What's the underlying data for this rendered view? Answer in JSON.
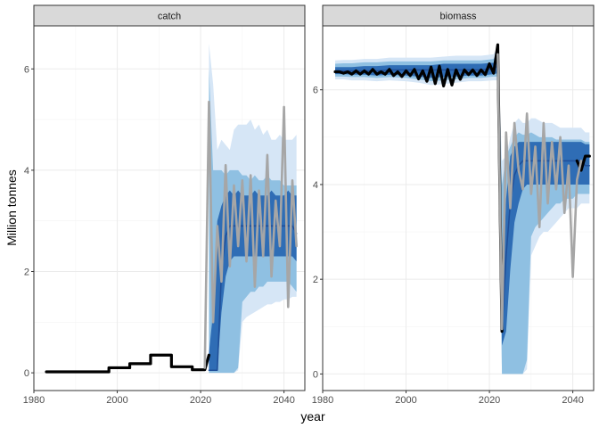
{
  "chart_data": {
    "type": "line",
    "xlabel": "year",
    "ylabel": "Million tonnes",
    "grid": true,
    "colors": {
      "band_outer": "#d6e6f6",
      "band_mid": "#8fc0e2",
      "band_inner": "#2f6db5",
      "median": "#1f4e98",
      "historical": "#000000",
      "iteration": "#a6a6a6",
      "strip_bg": "#d9d9d9",
      "panel_border": "#333333",
      "grid_major": "#ebebeb"
    },
    "panels": [
      {
        "title": "catch",
        "xlim": [
          1980,
          2045
        ],
        "ylim": [
          -0.35,
          6.85
        ],
        "xticks": [
          1980,
          2000,
          2020,
          2040
        ],
        "yticks": [
          0,
          2,
          4,
          6
        ],
        "historical": {
          "x": [
            1983,
            1984,
            1985,
            1986,
            1987,
            1988,
            1989,
            1990,
            1991,
            1992,
            1993,
            1994,
            1995,
            1996,
            1997,
            1998,
            1999,
            2000,
            2001,
            2002,
            2003,
            2004,
            2005,
            2006,
            2007,
            2008,
            2009,
            2010,
            2011,
            2012,
            2013,
            2014,
            2015,
            2016,
            2017,
            2018,
            2019,
            2020,
            2021
          ],
          "y": [
            0.02,
            0.02,
            0.02,
            0.02,
            0.02,
            0.02,
            0.02,
            0.02,
            0.02,
            0.02,
            0.02,
            0.02,
            0.02,
            0.02,
            0.02,
            0.1,
            0.1,
            0.1,
            0.1,
            0.1,
            0.18,
            0.18,
            0.18,
            0.18,
            0.18,
            0.35,
            0.35,
            0.35,
            0.35,
            0.35,
            0.12,
            0.12,
            0.12,
            0.12,
            0.12,
            0.06,
            0.06,
            0.06,
            0.06
          ]
        },
        "projection": {
          "x": [
            2022,
            2023,
            2024,
            2025,
            2026,
            2027,
            2028,
            2029,
            2030,
            2031,
            2032,
            2033,
            2034,
            2035,
            2036,
            2037,
            2038,
            2039,
            2040,
            2041,
            2042,
            2043
          ],
          "outer_lo": [
            0.0,
            0.0,
            0.0,
            0.0,
            0.0,
            0.0,
            0.0,
            0.05,
            1.0,
            1.1,
            1.15,
            1.2,
            1.25,
            1.3,
            1.35,
            1.35,
            1.4,
            1.4,
            1.45,
            1.45,
            1.5,
            1.5
          ],
          "outer_hi": [
            6.5,
            5.7,
            4.4,
            4.6,
            4.5,
            4.4,
            4.8,
            4.9,
            4.9,
            4.9,
            5.0,
            4.8,
            4.9,
            4.7,
            4.8,
            4.6,
            4.6,
            4.7,
            4.6,
            4.6,
            4.6,
            4.7
          ],
          "mid_lo": [
            0.0,
            0.0,
            0.0,
            0.0,
            0.0,
            0.0,
            0.0,
            0.1,
            1.4,
            1.5,
            1.6,
            1.6,
            1.7,
            1.7,
            1.8,
            1.8,
            1.8,
            1.8,
            1.8,
            1.8,
            1.7,
            1.6
          ],
          "mid_hi": [
            6.0,
            4.0,
            4.0,
            4.0,
            3.9,
            4.0,
            4.0,
            4.0,
            3.9,
            3.9,
            3.8,
            3.9,
            3.8,
            3.8,
            3.9,
            3.8,
            3.8,
            3.8,
            3.7,
            3.7,
            3.7,
            3.7
          ],
          "inner_lo": [
            0.05,
            0.05,
            0.05,
            1.2,
            1.9,
            2.2,
            2.3,
            2.3,
            2.3,
            2.3,
            2.3,
            2.3,
            2.3,
            2.3,
            2.3,
            2.3,
            2.3,
            2.3,
            2.3,
            2.3,
            2.3,
            2.2
          ],
          "inner_hi": [
            0.4,
            1.2,
            3.0,
            3.3,
            3.5,
            3.6,
            3.5,
            3.6,
            3.5,
            3.5,
            3.5,
            3.6,
            3.5,
            3.5,
            3.5,
            3.6,
            3.5,
            3.5,
            3.5,
            3.6,
            3.5,
            3.5
          ],
          "median": [
            0.05,
            0.05,
            0.05,
            2.0,
            2.7,
            2.9,
            2.9,
            2.9,
            2.9,
            2.9,
            2.9,
            2.9,
            2.9,
            2.9,
            2.9,
            2.9,
            2.9,
            2.9,
            2.9,
            2.9,
            2.9,
            2.75
          ]
        },
        "iteration": {
          "x": [
            2021,
            2022,
            2023,
            2024,
            2025,
            2026,
            2027,
            2028,
            2029,
            2030,
            2031,
            2032,
            2033,
            2034,
            2035,
            2036,
            2037,
            2038,
            2039,
            2040,
            2041,
            2042,
            2043
          ],
          "y": [
            0.1,
            5.35,
            1.0,
            2.9,
            1.8,
            4.1,
            2.1,
            3.7,
            2.5,
            3.8,
            2.2,
            3.9,
            1.7,
            3.6,
            2.3,
            4.3,
            1.9,
            3.4,
            2.5,
            5.25,
            1.3,
            3.8,
            2.5
          ]
        }
      },
      {
        "title": "biomass",
        "xlim": [
          1980,
          2045
        ],
        "ylim": [
          -0.35,
          7.35
        ],
        "xticks": [
          1980,
          2000,
          2020,
          2040
        ],
        "yticks": [
          0,
          2,
          4,
          6
        ],
        "historical": {
          "x": [
            1983,
            1984,
            1985,
            1986,
            1987,
            1988,
            1989,
            1990,
            1991,
            1992,
            1993,
            1994,
            1995,
            1996,
            1997,
            1998,
            1999,
            2000,
            2001,
            2002,
            2003,
            2004,
            2005,
            2006,
            2007,
            2008,
            2009,
            2010,
            2011,
            2012,
            2013,
            2014,
            2015,
            2016,
            2017,
            2018,
            2019,
            2020,
            2021,
            2022,
            2023
          ],
          "y": [
            6.38,
            6.38,
            6.35,
            6.38,
            6.33,
            6.4,
            6.33,
            6.4,
            6.33,
            6.43,
            6.33,
            6.38,
            6.33,
            6.43,
            6.3,
            6.38,
            6.28,
            6.4,
            6.3,
            6.43,
            6.23,
            6.4,
            6.18,
            6.48,
            6.13,
            6.5,
            6.08,
            6.43,
            6.1,
            6.42,
            6.22,
            6.42,
            6.32,
            6.42,
            6.3,
            6.42,
            6.32,
            6.55,
            6.35,
            6.95,
            0.9
          ]
        },
        "projection": {
          "x": [
            1983,
            1985,
            1987,
            1990,
            1993,
            1996,
            2000,
            2003,
            2006,
            2009,
            2012,
            2015,
            2018,
            2021,
            2022,
            2023,
            2024,
            2025,
            2026,
            2027,
            2028,
            2029,
            2030,
            2031,
            2032,
            2033,
            2034,
            2035,
            2036,
            2037,
            2038,
            2039,
            2040,
            2041,
            2042,
            2043,
            2044
          ],
          "outer_lo": [
            6.22,
            6.22,
            6.2,
            6.2,
            6.18,
            6.2,
            6.18,
            6.15,
            6.1,
            6.12,
            6.15,
            6.18,
            6.18,
            6.2,
            6.2,
            0.0,
            0.0,
            0.0,
            0.0,
            0.0,
            0.0,
            0.1,
            2.5,
            2.7,
            2.9,
            3.0,
            3.0,
            3.1,
            3.2,
            3.3,
            3.4,
            3.5,
            3.5,
            3.5,
            3.6,
            3.6,
            3.6
          ],
          "outer_hi": [
            6.62,
            6.63,
            6.63,
            6.65,
            6.65,
            6.68,
            6.68,
            6.68,
            6.68,
            6.7,
            6.72,
            6.72,
            6.72,
            6.75,
            6.9,
            4.5,
            4.6,
            5.0,
            5.3,
            5.4,
            5.3,
            5.3,
            5.4,
            5.4,
            5.35,
            5.3,
            5.3,
            5.3,
            5.25,
            5.2,
            5.2,
            5.2,
            5.2,
            5.2,
            5.2,
            5.1,
            5.1
          ],
          "mid_lo": [
            6.28,
            6.28,
            6.27,
            6.27,
            6.25,
            6.27,
            6.25,
            6.22,
            6.18,
            6.2,
            6.22,
            6.25,
            6.25,
            6.28,
            6.28,
            0.0,
            0.0,
            0.0,
            0.0,
            0.0,
            0.0,
            0.3,
            2.9,
            3.1,
            3.2,
            3.3,
            3.4,
            3.5,
            3.6,
            3.6,
            3.7,
            3.7,
            3.7,
            3.8,
            3.8,
            3.8,
            3.8
          ],
          "mid_hi": [
            6.55,
            6.56,
            6.56,
            6.58,
            6.58,
            6.6,
            6.6,
            6.6,
            6.6,
            6.62,
            6.62,
            6.62,
            6.62,
            6.65,
            6.8,
            4.0,
            4.6,
            4.8,
            5.0,
            5.1,
            5.05,
            5.05,
            5.1,
            5.05,
            5.0,
            5.0,
            5.0,
            5.0,
            4.95,
            4.95,
            4.95,
            4.95,
            4.95,
            4.95,
            4.95,
            4.9,
            4.9
          ],
          "inner_lo": [
            6.33,
            6.33,
            6.32,
            6.32,
            6.3,
            6.32,
            6.3,
            6.28,
            6.25,
            6.27,
            6.28,
            6.3,
            6.3,
            6.33,
            6.35,
            0.6,
            0.9,
            2.2,
            3.2,
            3.6,
            3.9,
            4.0,
            4.0,
            4.0,
            4.0,
            4.0,
            4.0,
            4.0,
            4.0,
            4.0,
            4.0,
            4.0,
            4.0,
            4.0,
            4.0,
            4.0,
            4.0
          ],
          "inner_hi": [
            6.48,
            6.48,
            6.48,
            6.5,
            6.5,
            6.52,
            6.52,
            6.52,
            6.52,
            6.55,
            6.55,
            6.55,
            6.55,
            6.57,
            6.7,
            1.5,
            3.7,
            4.6,
            4.8,
            4.9,
            4.9,
            4.9,
            4.9,
            4.9,
            4.9,
            4.9,
            4.9,
            4.9,
            4.9,
            4.9,
            4.9,
            4.9,
            4.9,
            4.9,
            4.9,
            4.85,
            4.85
          ],
          "median": [
            6.4,
            6.4,
            6.4,
            6.4,
            6.4,
            6.42,
            6.42,
            6.42,
            6.42,
            6.42,
            6.42,
            6.42,
            6.42,
            6.45,
            6.5,
            0.9,
            2.5,
            3.6,
            4.2,
            4.4,
            4.5,
            4.5,
            4.5,
            4.5,
            4.5,
            4.5,
            4.5,
            4.5,
            4.5,
            4.5,
            4.5,
            4.5,
            4.5,
            4.5,
            4.5,
            4.4,
            4.4
          ]
        },
        "iteration": {
          "x": [
            2022,
            2023,
            2024,
            2025,
            2026,
            2027,
            2028,
            2029,
            2030,
            2031,
            2032,
            2033,
            2034,
            2035,
            2036,
            2037,
            2038,
            2039,
            2040,
            2041,
            2042
          ],
          "y": [
            6.75,
            0.95,
            5.1,
            3.5,
            5.3,
            4.3,
            3.9,
            5.5,
            3.8,
            4.8,
            3.1,
            5.3,
            3.6,
            4.9,
            3.9,
            5.0,
            3.4,
            4.4,
            2.05,
            4.1,
            4.5
          ]
        },
        "tail": {
          "x": [
            2041,
            2042,
            2043,
            2044
          ],
          "y": [
            4.5,
            4.3,
            4.6,
            4.6
          ]
        }
      }
    ]
  }
}
